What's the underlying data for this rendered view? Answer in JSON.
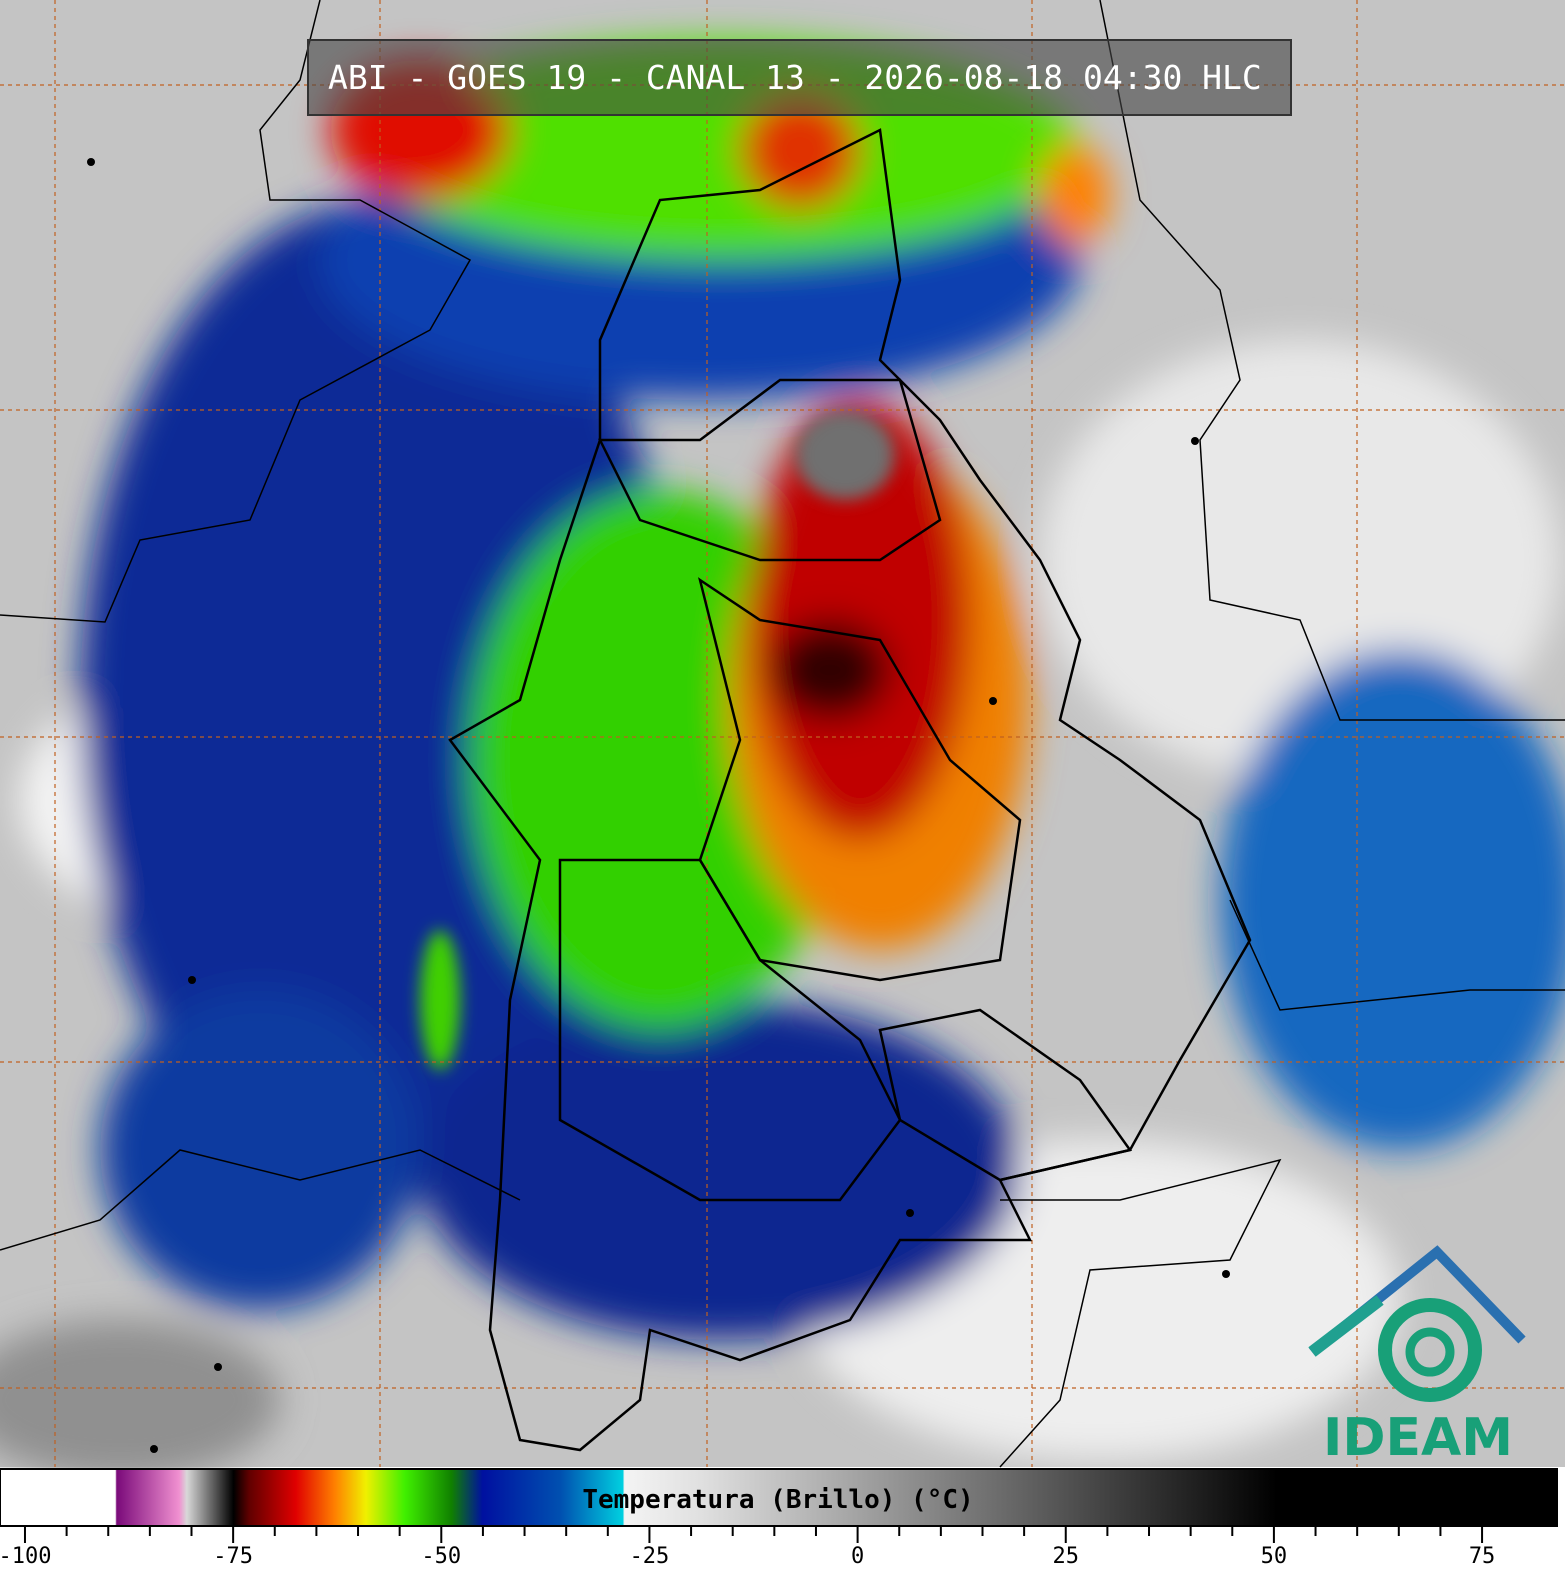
{
  "title": "ABI - GOES 19 - CANAL 13 - 2026-08-18 04:30 HLC",
  "logo": "IDEAM",
  "colorbar": {
    "label": "Temperatura (Brillo) (°C)",
    "range": [
      -103,
      84
    ],
    "ticks": [
      -100,
      -75,
      -50,
      -25,
      0,
      25,
      50,
      75
    ]
  }
}
